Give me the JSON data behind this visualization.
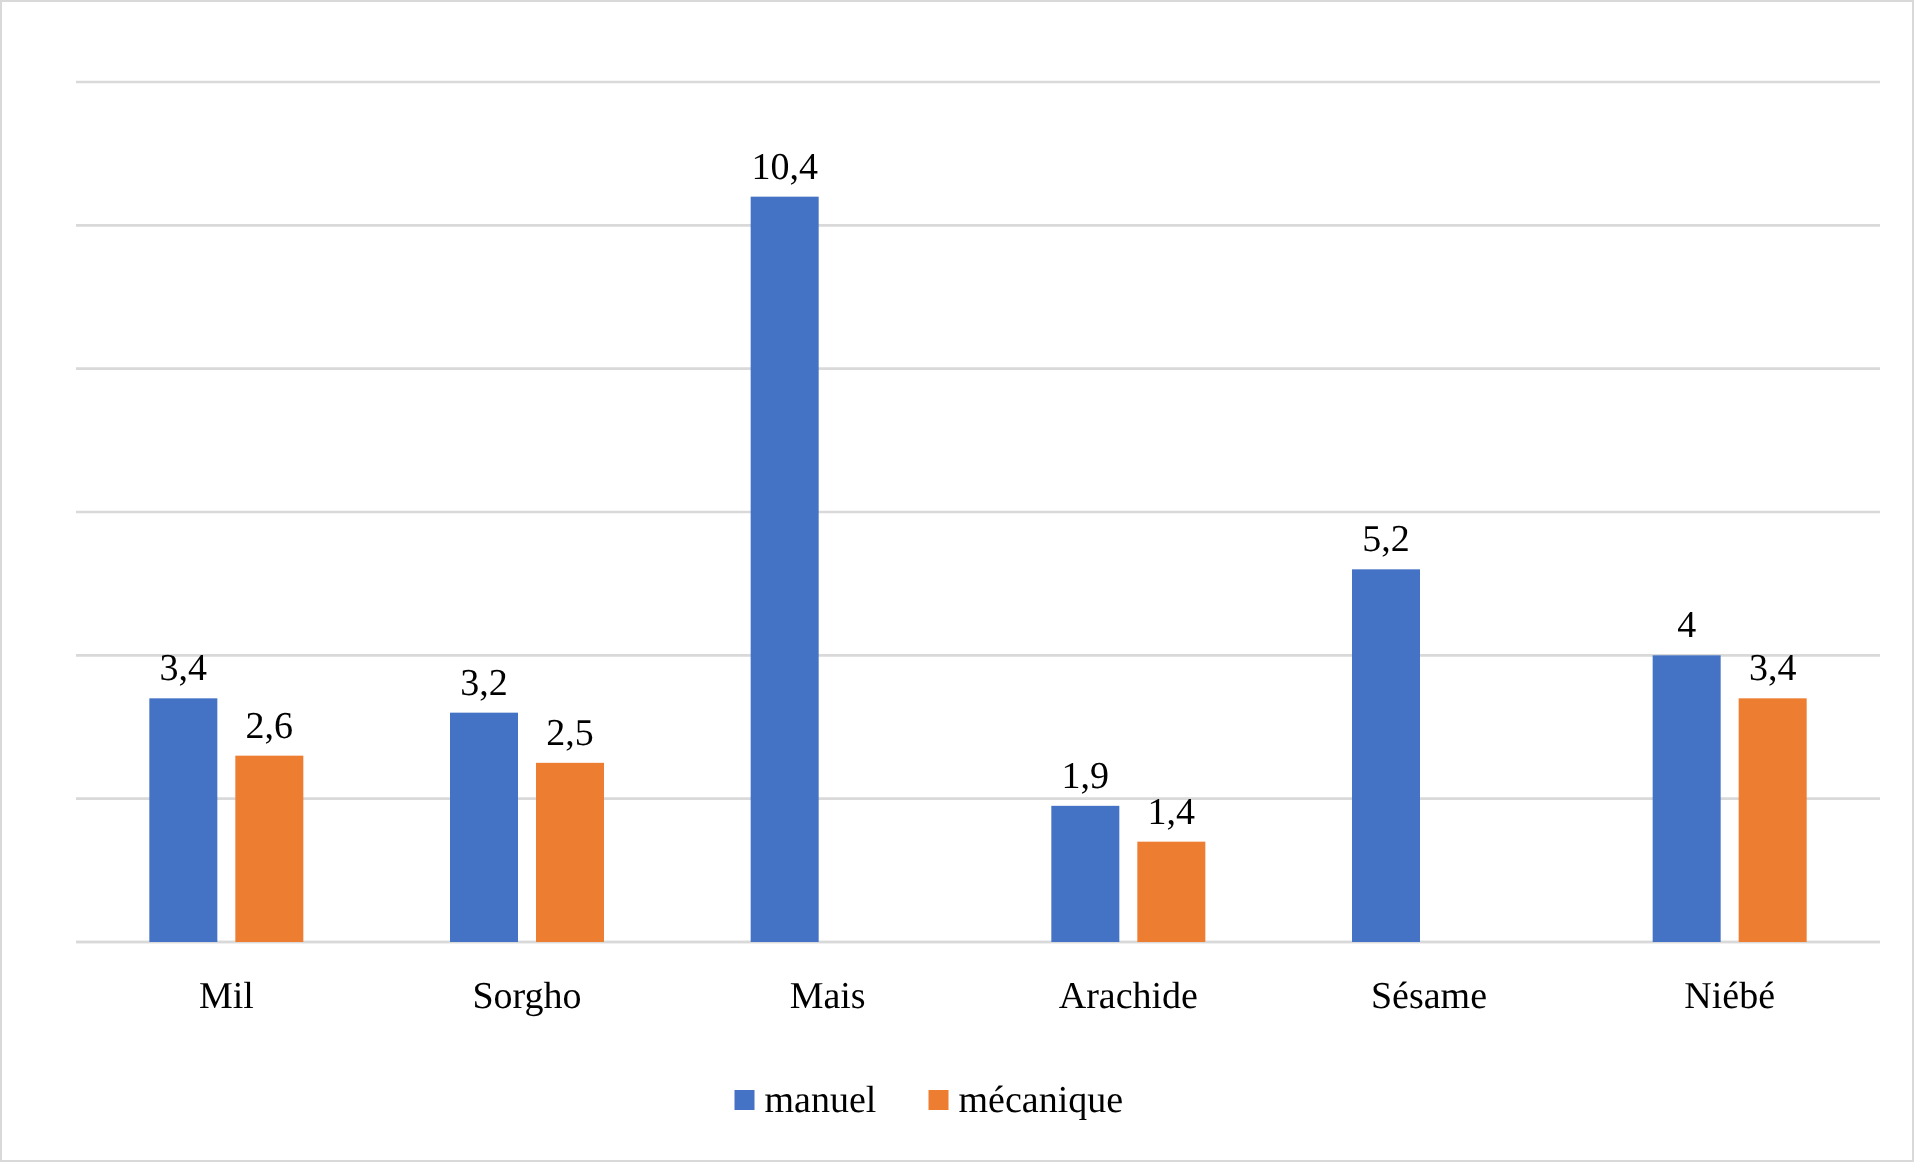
{
  "chart_data": {
    "type": "bar",
    "categories": [
      "Mil",
      "Sorgho",
      "Mais",
      "Arachide",
      "Sésame",
      "Niébé"
    ],
    "series": [
      {
        "name": "manuel",
        "color": "#4472c4",
        "values": [
          3.4,
          3.2,
          10.4,
          1.9,
          5.2,
          4
        ],
        "value_labels": [
          "3,4",
          "3,2",
          "10,4",
          "1,9",
          "5,2",
          "4"
        ]
      },
      {
        "name": "mécanique",
        "color": "#ed7d31",
        "values": [
          2.6,
          2.5,
          null,
          1.4,
          null,
          3.4
        ],
        "value_labels": [
          "2,6",
          "2,5",
          null,
          "1,4",
          null,
          "3,4"
        ]
      }
    ],
    "ylim": [
      0,
      12
    ],
    "yticks": [
      {
        "value": 0,
        "label": null
      },
      {
        "value": 2,
        "label": null
      },
      {
        "value": 4,
        "label": null
      },
      {
        "value": 6,
        "label": null
      },
      {
        "value": 8,
        "label": null
      },
      {
        "value": 10,
        "label": null
      },
      {
        "value": 12,
        "label": null
      }
    ],
    "grid": "y",
    "tick_labels": "x",
    "legend": "bottom"
  }
}
